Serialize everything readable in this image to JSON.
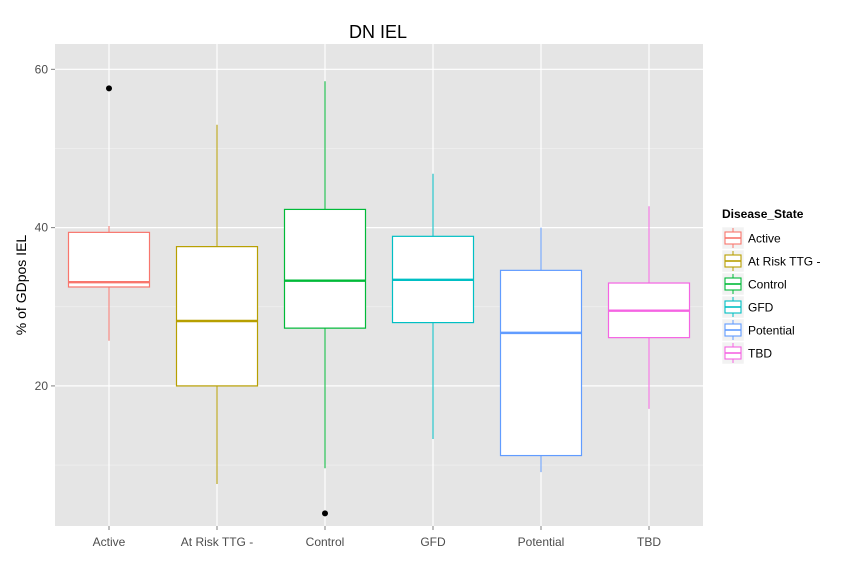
{
  "chart_data": {
    "type": "boxplot",
    "title": "DN IEL",
    "xlabel": "",
    "ylabel": "% of GDpos IEL",
    "ylim": [
      2.3,
      63.2
    ],
    "yticks": [
      20,
      40,
      60
    ],
    "grid": true,
    "legend": {
      "title": "Disease_State",
      "placement": "right"
    },
    "categories": [
      "Active",
      "At Risk TTG -",
      "Control",
      "GFD",
      "Potential",
      "TBD"
    ],
    "colors": [
      "#F8766D",
      "#B79F00",
      "#00BA38",
      "#00BFC4",
      "#619CFF",
      "#F564E3"
    ],
    "series": [
      {
        "name": "Active",
        "min": 25.7,
        "q1": 32.5,
        "median": 33.1,
        "q3": 39.4,
        "max": 40.2,
        "outliers": [
          57.6
        ]
      },
      {
        "name": "At Risk TTG -",
        "min": 7.6,
        "q1": 20.0,
        "median": 28.2,
        "q3": 37.6,
        "max": 53.0,
        "outliers": []
      },
      {
        "name": "Control",
        "min": 9.6,
        "q1": 27.3,
        "median": 33.3,
        "q3": 42.3,
        "max": 58.5,
        "outliers": [
          3.9
        ]
      },
      {
        "name": "GFD",
        "min": 13.3,
        "q1": 28.0,
        "median": 33.4,
        "q3": 38.9,
        "max": 46.8,
        "outliers": []
      },
      {
        "name": "Potential",
        "min": 9.1,
        "q1": 11.2,
        "median": 26.7,
        "q3": 34.6,
        "max": 40.0,
        "outliers": []
      },
      {
        "name": "TBD",
        "min": 17.1,
        "q1": 26.1,
        "median": 29.5,
        "q3": 33.0,
        "max": 42.7,
        "outliers": []
      }
    ]
  }
}
